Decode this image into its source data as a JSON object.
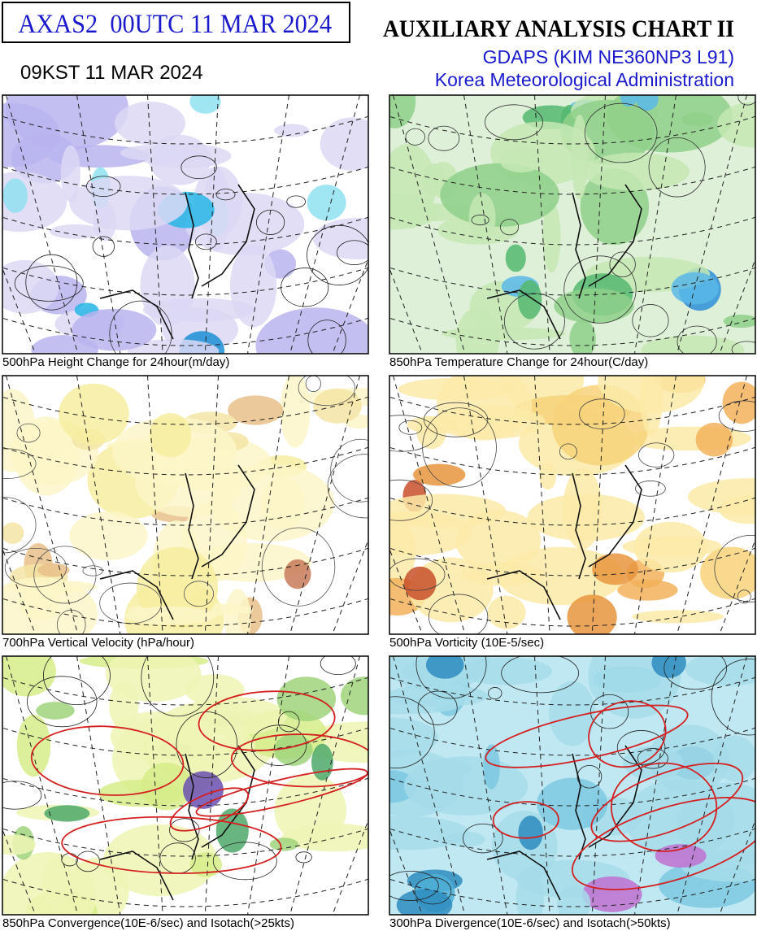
{
  "header": {
    "code": "AXAS2  00UTC 11 MAR 2024",
    "local_time": "09KST 11 MAR 2024",
    "title": "AUXILIARY ANALYSIS CHART II",
    "model": "GDAPS (KIM NE360NP3 L91)",
    "agency": "Korea Meteorological Administration"
  },
  "panels": [
    {
      "caption": "500hPa Height Change for 24hour(m/day)"
    },
    {
      "caption": "850hPa Temperature Change for 24hour(C/day)"
    },
    {
      "caption": "700hPa Vertical Velocity (hPa/hour)"
    },
    {
      "caption": "500hPa Vorticity (10E-5/sec)"
    },
    {
      "caption": "850hPa Convergence(10E-6/sec) and Isotach(>25kts)"
    },
    {
      "caption": "300hPa Divergence(10E-6/sec) and Isotach(>50kts)"
    }
  ]
}
